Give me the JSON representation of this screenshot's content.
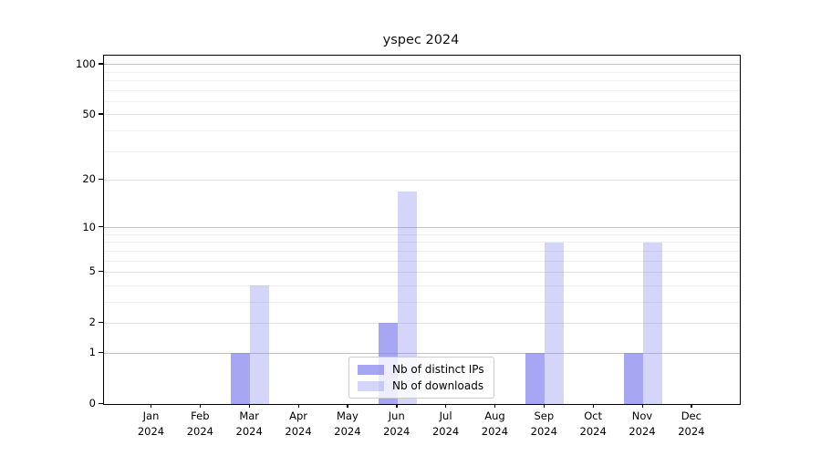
{
  "chart_data": {
    "type": "bar",
    "title": "yspec 2024",
    "x_tick_year": "2024",
    "categories": [
      "Jan",
      "Feb",
      "Mar",
      "Apr",
      "May",
      "Jun",
      "Jul",
      "Aug",
      "Sep",
      "Oct",
      "Nov",
      "Dec"
    ],
    "series": [
      {
        "name": "Nb of distinct IPs",
        "fill": "rgba(136,136,238,0.75)",
        "values": [
          0,
          0,
          1,
          0,
          0,
          2,
          0,
          0,
          1,
          0,
          1,
          0
        ]
      },
      {
        "name": "Nb of downloads",
        "fill": "rgba(136,136,238,0.35)",
        "values": [
          0,
          0,
          4,
          0,
          0,
          17,
          0,
          0,
          8,
          0,
          8,
          0
        ]
      }
    ],
    "yscale": "symlog (log1p)",
    "ylim": [
      0,
      113
    ],
    "ytick_labels": [
      0,
      1,
      2,
      5,
      10,
      20,
      50,
      100
    ],
    "minor_yticks": [
      3,
      4,
      6,
      7,
      8,
      9,
      30,
      40,
      60,
      70,
      80,
      90
    ],
    "grid": "horizontal",
    "legend_position": "lower center",
    "colors": {
      "decade_gridline": "#c3c3c3",
      "major_gridline": "#e3e3e3",
      "minor_gridline": "#efefef",
      "spine": "#000000",
      "text": "#000000"
    }
  }
}
